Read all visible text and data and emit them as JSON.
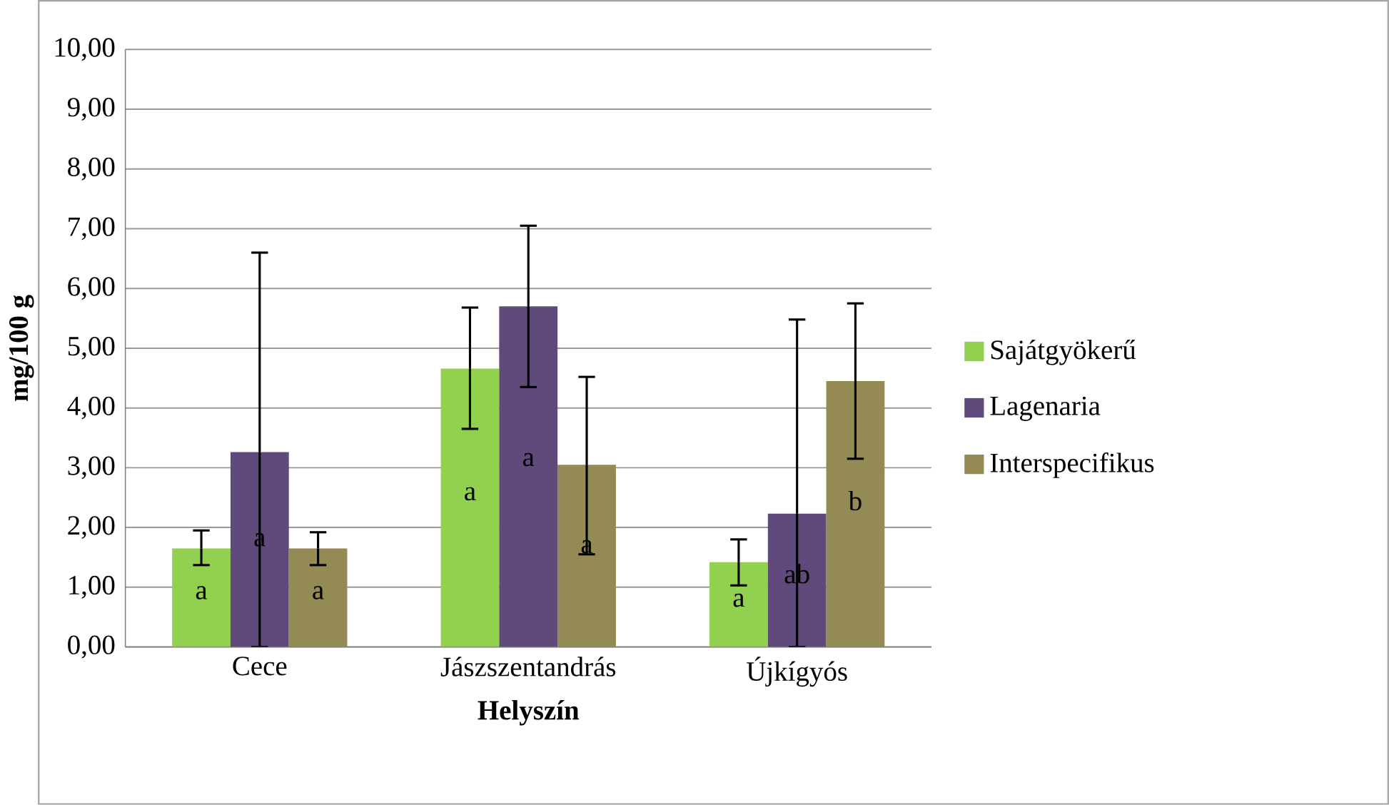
{
  "chart_data": {
    "type": "bar",
    "xlabel": "Helyszín",
    "ylabel": "mg/100 g",
    "categories": [
      "Cece",
      "Jászszentandrás",
      "Újkígyós"
    ],
    "series": [
      {
        "name": "Sajátgyökerű",
        "color": "#92d050",
        "values": [
          1.65,
          4.66,
          1.42
        ],
        "errors": [
          [
            1.37,
            1.95
          ],
          [
            3.65,
            5.68
          ],
          [
            1.03,
            1.8
          ]
        ],
        "value_labels": [
          "a",
          "a",
          "a"
        ]
      },
      {
        "name": "Lagenaria",
        "color": "#604a7b",
        "values": [
          3.26,
          5.7,
          2.23
        ],
        "errors": [
          [
            0,
            6.6
          ],
          [
            4.35,
            7.05
          ],
          [
            0,
            5.48
          ]
        ],
        "value_labels": [
          "a",
          "a",
          "ab"
        ]
      },
      {
        "name": "Interspecifikus",
        "color": "#948a54",
        "values": [
          1.65,
          3.05,
          4.45
        ],
        "errors": [
          [
            1.37,
            1.92
          ],
          [
            1.55,
            4.52
          ],
          [
            3.15,
            5.75
          ]
        ],
        "value_labels": [
          "a",
          "a",
          "b"
        ]
      }
    ],
    "ylim": [
      0,
      10
    ],
    "yticks": [
      {
        "value": 0,
        "label": "0,00"
      },
      {
        "value": 1,
        "label": "1,00"
      },
      {
        "value": 2,
        "label": "2,00"
      },
      {
        "value": 3,
        "label": "3,00"
      },
      {
        "value": 4,
        "label": "4,00"
      },
      {
        "value": 5,
        "label": "5,00"
      },
      {
        "value": 6,
        "label": "6,00"
      },
      {
        "value": 7,
        "label": "7,00"
      },
      {
        "value": 8,
        "label": "8,00"
      },
      {
        "value": 9,
        "label": "9,00"
      },
      {
        "value": 10,
        "label": "10,00"
      }
    ],
    "grid": "y",
    "legend": "right"
  }
}
